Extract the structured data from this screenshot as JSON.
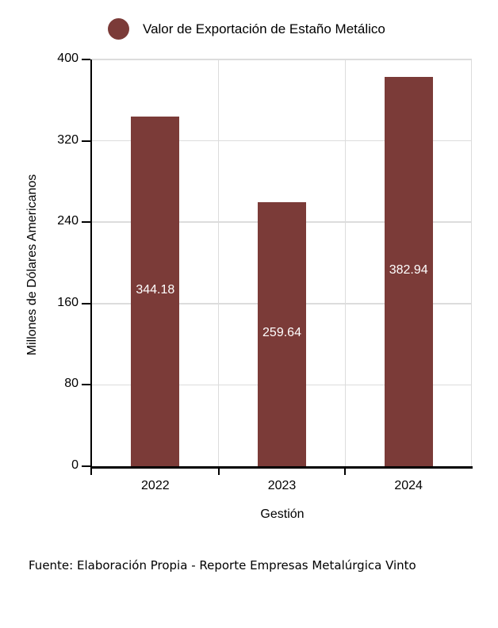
{
  "legend": {
    "marker": "circle",
    "label": "Valor de Exportación de Estaño Metálico"
  },
  "chart_data": {
    "type": "bar",
    "title": "",
    "series_name": "Valor de Exportación de Estaño Metálico",
    "categories": [
      "2022",
      "2023",
      "2024"
    ],
    "values": [
      344.18,
      259.64,
      382.94
    ],
    "value_labels": [
      "344.18",
      "259.64",
      "382.94"
    ],
    "xlabel": "Gestión",
    "ylabel": "Millones de Dólares Americanos",
    "ylim": [
      0,
      400
    ],
    "yticks": [
      0,
      80,
      160,
      240,
      320,
      400
    ],
    "grid": true,
    "legend_position": "top-left"
  },
  "footer": {
    "text": "Fuente: Elaboración Propia - Reporte Empresas Metalúrgica Vinto"
  },
  "colors": {
    "bar": "#7b3b38",
    "grid": "#dcdcdc",
    "axis": "#000000",
    "bar_label_text": "#ffffff",
    "text": "#000000",
    "background": "#ffffff"
  }
}
